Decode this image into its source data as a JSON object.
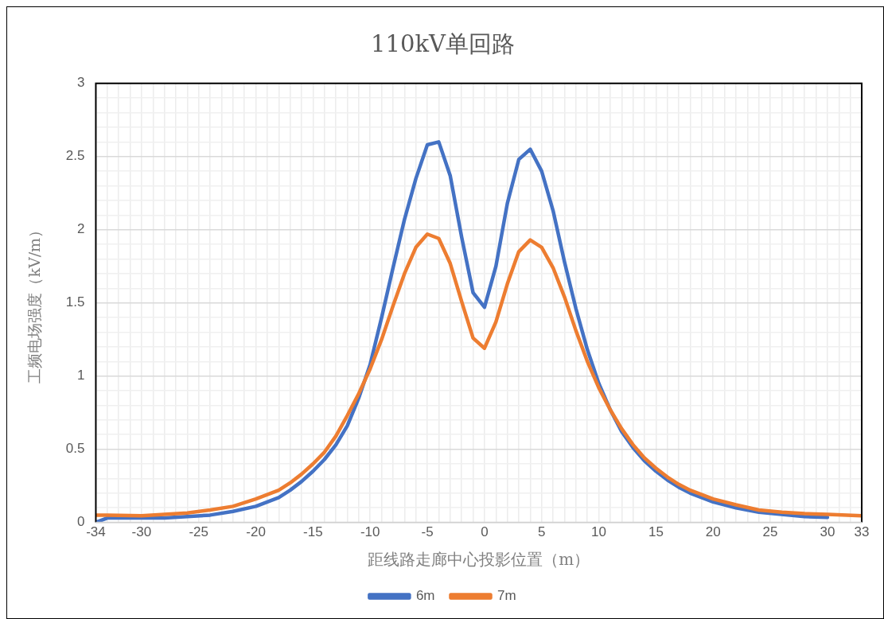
{
  "chart_data": {
    "type": "line",
    "title": "110kV单回路",
    "xlabel": "距线路走廊中心投影位置（m）",
    "ylabel": "工频电场强度（kV/m）",
    "x": [
      -34,
      -33,
      -30,
      -28,
      -26,
      -24,
      -22,
      -20,
      -18,
      -17,
      -16,
      -15,
      -14,
      -13,
      -12,
      -11,
      -10,
      -9,
      -8,
      -7,
      -6,
      -5,
      -4,
      -3,
      -2,
      -1,
      0,
      1,
      2,
      3,
      4,
      5,
      6,
      7,
      8,
      9,
      10,
      11,
      12,
      13,
      14,
      15,
      16,
      17,
      18,
      20,
      22,
      24,
      26,
      28,
      30,
      33
    ],
    "series": [
      {
        "name": "6m",
        "color": "#4472c4",
        "values": [
          0,
          0.03,
          0.03,
          0.03,
          0.04,
          0.05,
          0.075,
          0.11,
          0.17,
          0.22,
          0.28,
          0.35,
          0.43,
          0.53,
          0.66,
          0.85,
          1.08,
          1.4,
          1.74,
          2.07,
          2.35,
          2.58,
          2.6,
          2.37,
          1.95,
          1.57,
          1.47,
          1.75,
          2.18,
          2.48,
          2.55,
          2.4,
          2.13,
          1.78,
          1.46,
          1.18,
          0.95,
          0.77,
          0.62,
          0.51,
          0.42,
          0.35,
          0.29,
          0.24,
          0.2,
          0.14,
          0.1,
          0.07,
          0.055,
          0.04,
          0.035,
          null
        ]
      },
      {
        "name": "7m",
        "color": "#ed7d31",
        "values": [
          0.05,
          0.05,
          0.045,
          0.055,
          0.065,
          0.085,
          0.11,
          0.16,
          0.22,
          0.27,
          0.33,
          0.4,
          0.48,
          0.59,
          0.73,
          0.88,
          1.05,
          1.25,
          1.48,
          1.7,
          1.88,
          1.97,
          1.94,
          1.77,
          1.51,
          1.26,
          1.19,
          1.37,
          1.63,
          1.85,
          1.93,
          1.88,
          1.74,
          1.54,
          1.31,
          1.1,
          0.92,
          0.77,
          0.64,
          0.53,
          0.44,
          0.37,
          0.31,
          0.26,
          0.22,
          0.16,
          0.12,
          0.085,
          0.07,
          0.06,
          0.055,
          0.045
        ]
      }
    ],
    "xlim": [
      -34,
      33
    ],
    "ylim": [
      0,
      3
    ],
    "xticks": [
      -34,
      {
        "value": -33,
        "label": null
      },
      {
        "value": -32,
        "label": null
      },
      {
        "value": -31,
        "label": null
      },
      -30,
      {
        "value": -29,
        "label": null
      },
      {
        "value": -28,
        "label": null
      },
      {
        "value": -27,
        "label": null
      },
      {
        "value": -26,
        "label": null
      },
      -25,
      {
        "value": -24,
        "label": null
      },
      {
        "value": -23,
        "label": null
      },
      {
        "value": -22,
        "label": null
      },
      {
        "value": -21,
        "label": null
      },
      -20,
      {
        "value": -19,
        "label": null
      },
      {
        "value": -18,
        "label": null
      },
      {
        "value": -17,
        "label": null
      },
      {
        "value": -16,
        "label": null
      },
      -15,
      {
        "value": -14,
        "label": null
      },
      {
        "value": -13,
        "label": null
      },
      {
        "value": -12,
        "label": null
      },
      {
        "value": -11,
        "label": null
      },
      -10,
      {
        "value": -9,
        "label": null
      },
      {
        "value": -8,
        "label": null
      },
      {
        "value": -7,
        "label": null
      },
      {
        "value": -6,
        "label": null
      },
      -5,
      {
        "value": -4,
        "label": null
      },
      {
        "value": -3,
        "label": null
      },
      {
        "value": -2,
        "label": null
      },
      {
        "value": -1,
        "label": null
      },
      0,
      {
        "value": 1,
        "label": null
      },
      {
        "value": 2,
        "label": null
      },
      {
        "value": 3,
        "label": null
      },
      {
        "value": 4,
        "label": null
      },
      5,
      {
        "value": 6,
        "label": null
      },
      {
        "value": 7,
        "label": null
      },
      {
        "value": 8,
        "label": null
      },
      {
        "value": 9,
        "label": null
      },
      10,
      {
        "value": 11,
        "label": null
      },
      {
        "value": 12,
        "label": null
      },
      {
        "value": 13,
        "label": null
      },
      {
        "value": 14,
        "label": null
      },
      15,
      {
        "value": 16,
        "label": null
      },
      {
        "value": 17,
        "label": null
      },
      {
        "value": 18,
        "label": null
      },
      {
        "value": 19,
        "label": null
      },
      20,
      {
        "value": 21,
        "label": null
      },
      {
        "value": 22,
        "label": null
      },
      {
        "value": 23,
        "label": null
      },
      {
        "value": 24,
        "label": null
      },
      25,
      {
        "value": 26,
        "label": null
      },
      {
        "value": 27,
        "label": null
      },
      {
        "value": 28,
        "label": null
      },
      {
        "value": 29,
        "label": null
      },
      30,
      {
        "value": 31,
        "label": null
      },
      {
        "value": 32,
        "label": null
      },
      33
    ],
    "yticks": [
      0,
      {
        "value": 0.1,
        "label": null
      },
      {
        "value": 0.2,
        "label": null
      },
      {
        "value": 0.3,
        "label": null
      },
      {
        "value": 0.4,
        "label": null
      },
      0.5,
      {
        "value": 0.6,
        "label": null
      },
      {
        "value": 0.7,
        "label": null
      },
      {
        "value": 0.8,
        "label": null
      },
      {
        "value": 0.9,
        "label": null
      },
      1,
      {
        "value": 1.1,
        "label": null
      },
      {
        "value": 1.2,
        "label": null
      },
      {
        "value": 1.3,
        "label": null
      },
      {
        "value": 1.4,
        "label": null
      },
      1.5,
      {
        "value": 1.6,
        "label": null
      },
      {
        "value": 1.7,
        "label": null
      },
      {
        "value": 1.8,
        "label": null
      },
      {
        "value": 1.9,
        "label": null
      },
      2,
      {
        "value": 2.1,
        "label": null
      },
      {
        "value": 2.2,
        "label": null
      },
      {
        "value": 2.3,
        "label": null
      },
      {
        "value": 2.4,
        "label": null
      },
      2.5,
      {
        "value": 2.6,
        "label": null
      },
      {
        "value": 2.7,
        "label": null
      },
      {
        "value": 2.8,
        "label": null
      },
      {
        "value": 2.9,
        "label": null
      },
      3
    ],
    "grid": true,
    "legend": "bottom",
    "marker": "none",
    "line_style": "solid"
  }
}
